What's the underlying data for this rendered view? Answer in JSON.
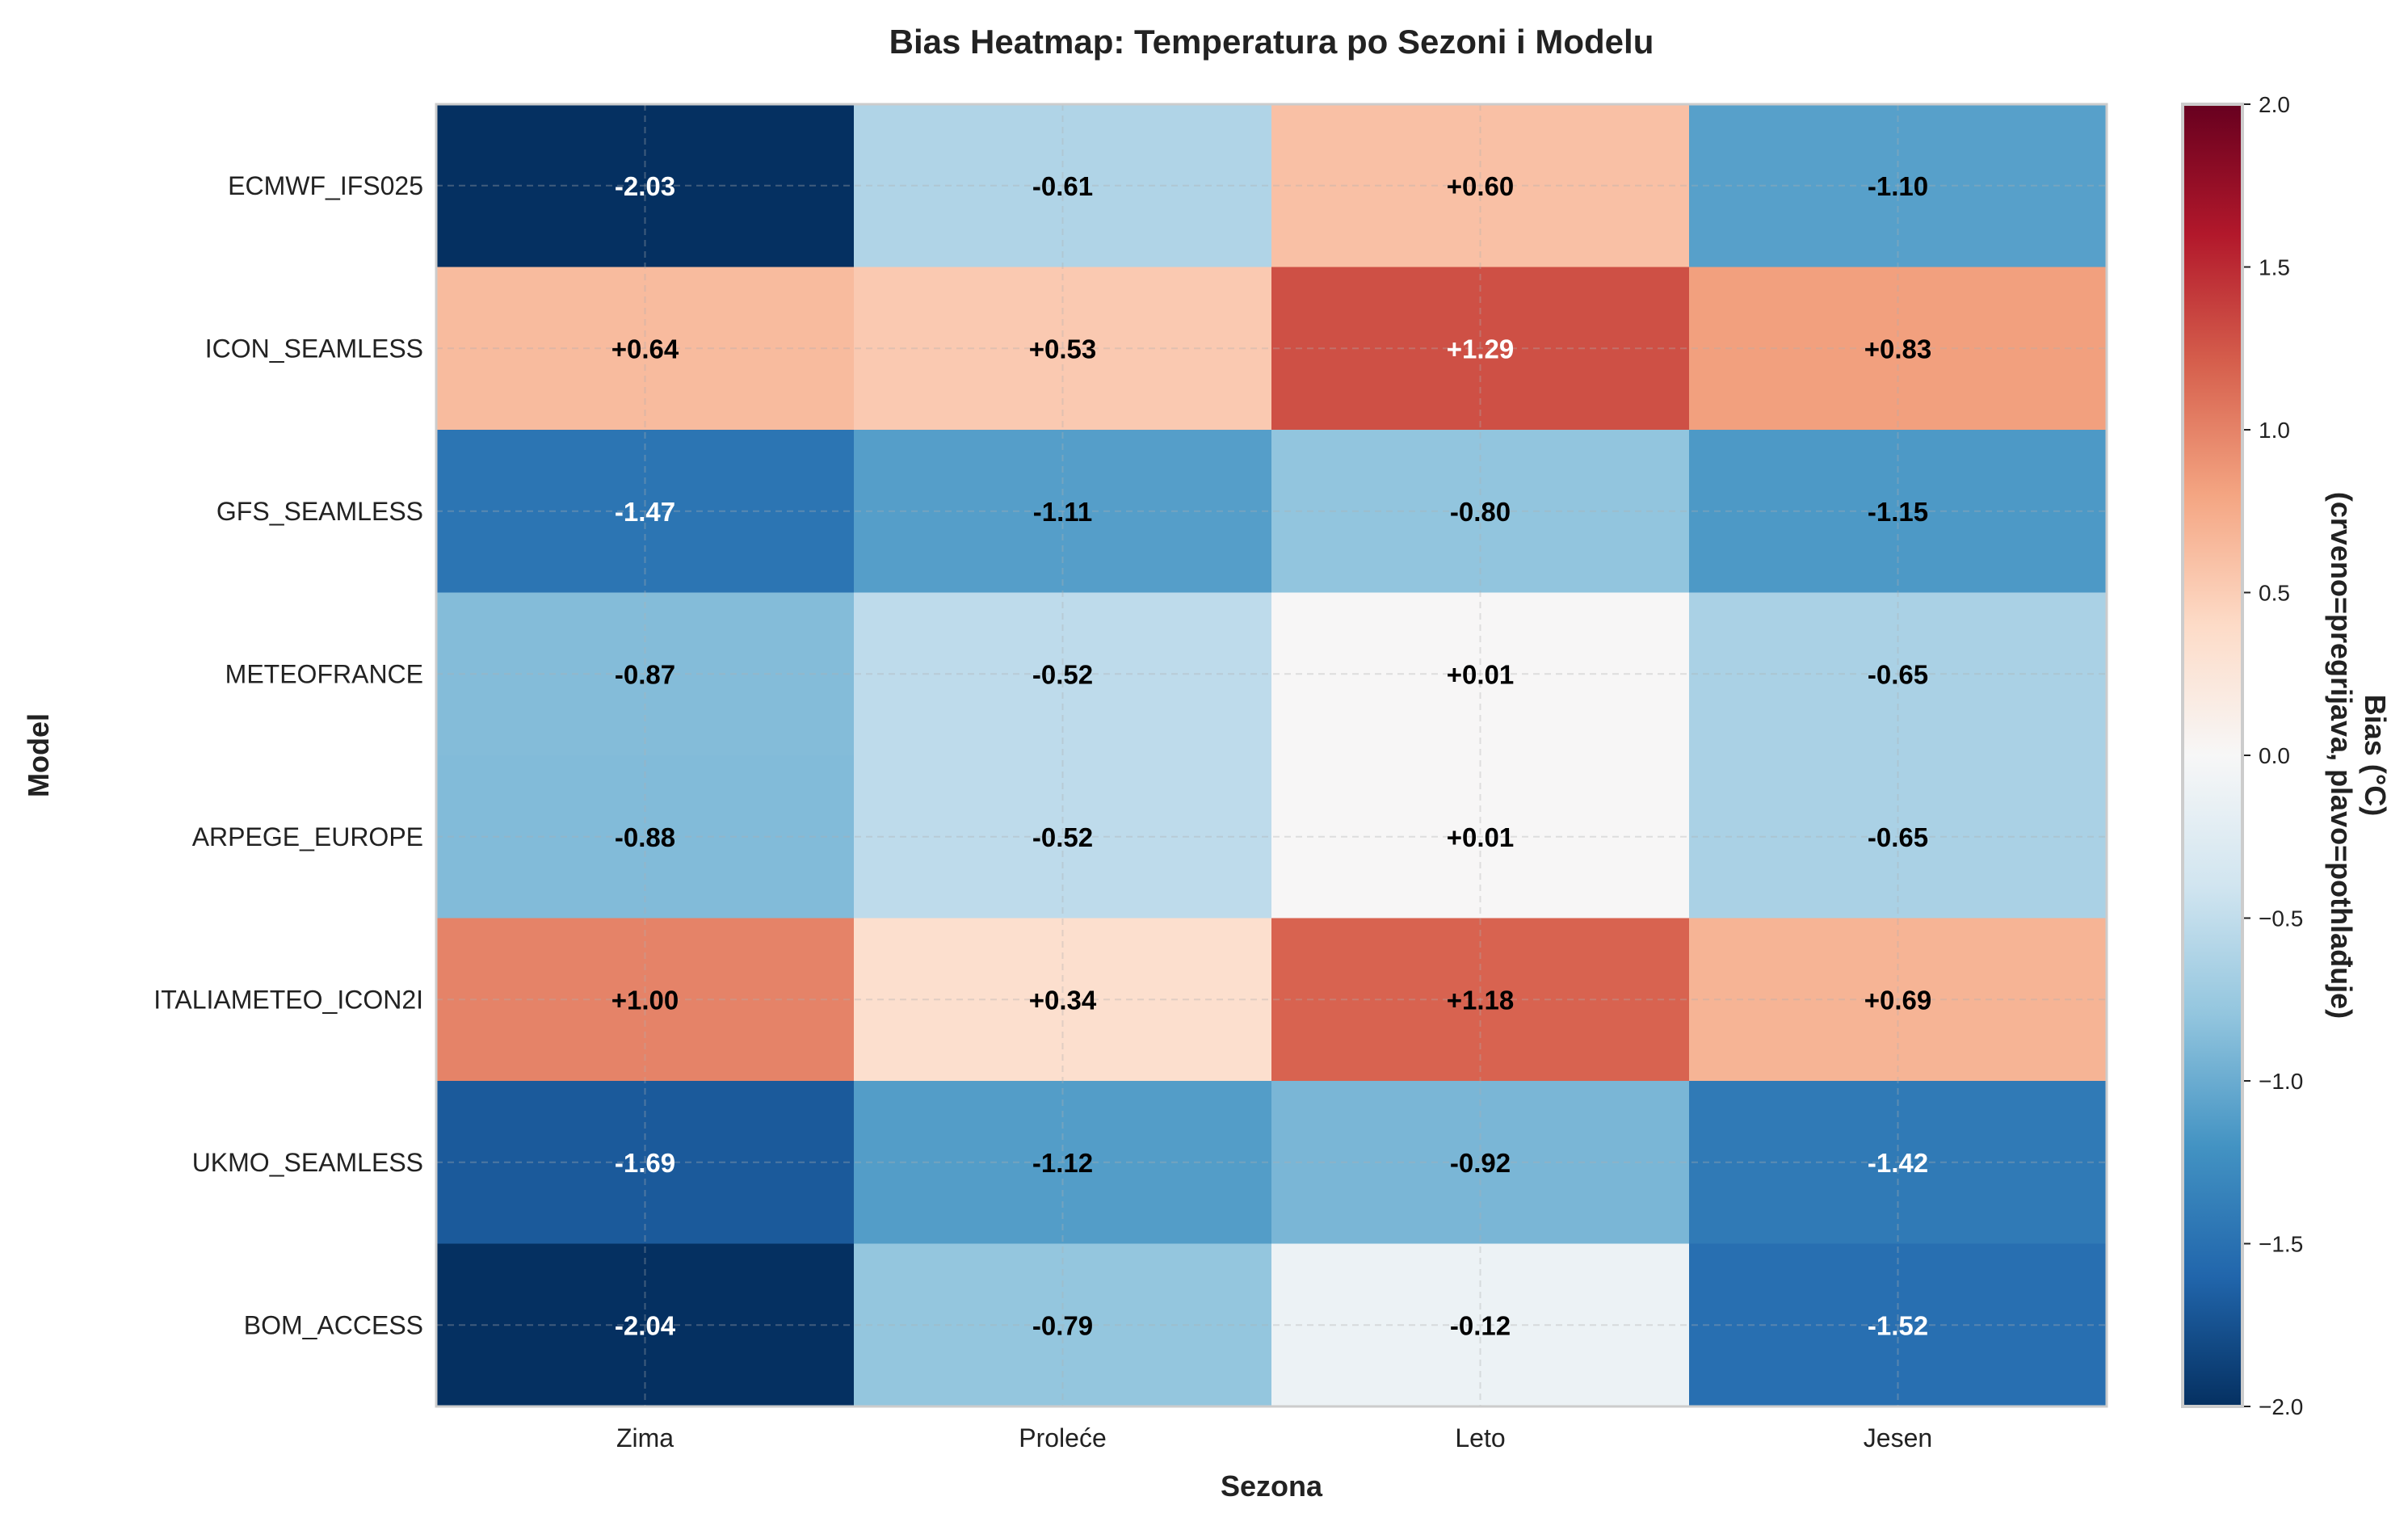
{
  "chart_data": {
    "type": "heatmap",
    "title": "Bias Heatmap: Temperatura po Sezoni i Modelu",
    "xlabel": "Sezona",
    "ylabel": "Model",
    "x_categories": [
      "Zima",
      "Proleće",
      "Leto",
      "Jesen"
    ],
    "y_categories": [
      "ECMWF_IFS025",
      "ICON_SEAMLESS",
      "GFS_SEAMLESS",
      "METEOFRANCE",
      "ARPEGE_EUROPE",
      "ITALIAMETEO_ICON2I",
      "UKMO_SEAMLESS",
      "BOM_ACCESS"
    ],
    "values": [
      [
        -2.03,
        -0.61,
        0.6,
        -1.1
      ],
      [
        0.64,
        0.53,
        1.29,
        0.83
      ],
      [
        -1.47,
        -1.11,
        -0.8,
        -1.15
      ],
      [
        -0.87,
        -0.52,
        0.01,
        -0.65
      ],
      [
        -0.88,
        -0.52,
        0.01,
        -0.65
      ],
      [
        1.0,
        0.34,
        1.18,
        0.69
      ],
      [
        -1.69,
        -1.12,
        -0.92,
        -1.42
      ],
      [
        -2.04,
        -0.79,
        -0.12,
        -1.52
      ]
    ],
    "value_labels": [
      [
        "-2.03",
        "-0.61",
        "+0.60",
        "-1.10"
      ],
      [
        "+0.64",
        "+0.53",
        "+1.29",
        "+0.83"
      ],
      [
        "-1.47",
        "-1.11",
        "-0.80",
        "-1.15"
      ],
      [
        "-0.87",
        "-0.52",
        "+0.01",
        "-0.65"
      ],
      [
        "-0.88",
        "-0.52",
        "+0.01",
        "-0.65"
      ],
      [
        "+1.00",
        "+0.34",
        "+1.18",
        "+0.69"
      ],
      [
        "-1.69",
        "-1.12",
        "-0.92",
        "-1.42"
      ],
      [
        "-2.04",
        "-0.79",
        "-0.12",
        "-1.52"
      ]
    ],
    "colormap": "RdBu_r",
    "vmin": -2.0,
    "vmax": 2.0,
    "colorbar": {
      "label_line1": "Bias (°C)",
      "label_line2": "(crveno=pregrijava, plavo=pothlađuje)",
      "ticks": [
        2.0,
        1.5,
        1.0,
        0.5,
        0.0,
        -0.5,
        -1.0,
        -1.5,
        -2.0
      ],
      "tick_labels": [
        "2.0",
        "1.5",
        "1.0",
        "0.5",
        "0.0",
        "−0.5",
        "−1.0",
        "−1.5",
        "−2.0"
      ]
    },
    "colormap_stops": [
      "#053061",
      "#2166ac",
      "#4393c3",
      "#92c5de",
      "#d1e5f0",
      "#f7f7f7",
      "#fddbc7",
      "#f4a582",
      "#d6604d",
      "#b2182b",
      "#67001f"
    ],
    "grid": true
  }
}
